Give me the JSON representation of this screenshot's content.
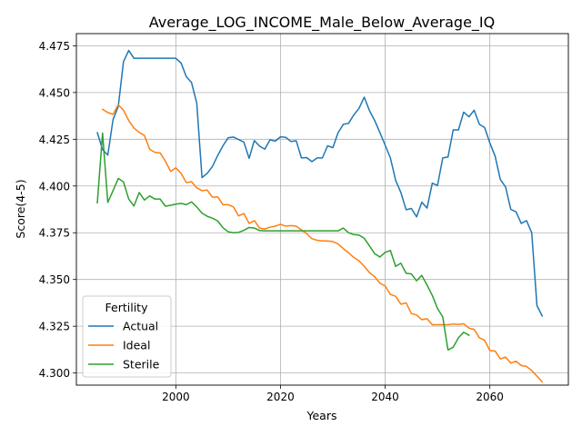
{
  "chart_data": {
    "type": "line",
    "title": "Average_LOG_INCOME_Male_Below_Average_IQ",
    "xlabel": "Years",
    "ylabel": "Score(4-5)",
    "xlim": [
      1981,
      2075
    ],
    "ylim": [
      4.2935,
      4.4815
    ],
    "xticks": [
      2000,
      2020,
      2040,
      2060
    ],
    "xtick_labels": [
      "2000",
      "2020",
      "2040",
      "2060"
    ],
    "yticks": [
      4.3,
      4.325,
      4.35,
      4.375,
      4.4,
      4.425,
      4.45,
      4.475
    ],
    "ytick_labels": [
      "4.300",
      "4.325",
      "4.350",
      "4.375",
      "4.400",
      "4.425",
      "4.450",
      "4.475"
    ],
    "grid": true,
    "legend": {
      "title": "Fertility",
      "position": "lower-left"
    },
    "series": [
      {
        "name": "Actual",
        "color": "#1f77b4",
        "points": [
          [
            1985,
            4.4285
          ],
          [
            1986,
            4.4195
          ],
          [
            1987,
            4.4165
          ],
          [
            1988,
            4.4355
          ],
          [
            1989,
            4.4425
          ],
          [
            1990,
            4.4665
          ],
          [
            1991,
            4.4725
          ],
          [
            1992,
            4.4683
          ],
          [
            1993,
            4.4683
          ],
          [
            1994,
            4.4683
          ],
          [
            1995,
            4.4683
          ],
          [
            1996,
            4.4683
          ],
          [
            1997,
            4.4683
          ],
          [
            1998,
            4.4683
          ],
          [
            1999,
            4.4683
          ],
          [
            2000,
            4.4683
          ],
          [
            2001,
            4.4658
          ],
          [
            2002,
            4.4585
          ],
          [
            2003,
            4.4553
          ],
          [
            2004,
            4.4443
          ],
          [
            2005,
            4.4045
          ],
          [
            2006,
            4.4068
          ],
          [
            2007,
            4.4105
          ],
          [
            2008,
            4.4163
          ],
          [
            2009,
            4.4215
          ],
          [
            2010,
            4.4258
          ],
          [
            2011,
            4.4262
          ],
          [
            2012,
            4.4248
          ],
          [
            2013,
            4.4235
          ],
          [
            2014,
            4.4148
          ],
          [
            2015,
            4.4243
          ],
          [
            2016,
            4.4213
          ],
          [
            2017,
            4.4197
          ],
          [
            2018,
            4.4247
          ],
          [
            2019,
            4.424
          ],
          [
            2020,
            4.4263
          ],
          [
            2021,
            4.426
          ],
          [
            2022,
            4.4238
          ],
          [
            2023,
            4.4242
          ],
          [
            2024,
            4.415
          ],
          [
            2025,
            4.4152
          ],
          [
            2026,
            4.413
          ],
          [
            2027,
            4.415
          ],
          [
            2028,
            4.415
          ],
          [
            2029,
            4.4215
          ],
          [
            2030,
            4.4205
          ],
          [
            2031,
            4.4285
          ],
          [
            2032,
            4.433
          ],
          [
            2033,
            4.4335
          ],
          [
            2034,
            4.438
          ],
          [
            2035,
            4.4415
          ],
          [
            2036,
            4.4475
          ],
          [
            2037,
            4.4403
          ],
          [
            2038,
            4.435
          ],
          [
            2039,
            4.4285
          ],
          [
            2040,
            4.4218
          ],
          [
            2041,
            4.415
          ],
          [
            2042,
            4.403
          ],
          [
            2043,
            4.3965
          ],
          [
            2044,
            4.3873
          ],
          [
            2045,
            4.388
          ],
          [
            2046,
            4.3835
          ],
          [
            2047,
            4.3913
          ],
          [
            2048,
            4.3882
          ],
          [
            2049,
            4.4015
          ],
          [
            2050,
            4.4003
          ],
          [
            2051,
            4.415
          ],
          [
            2052,
            4.4155
          ],
          [
            2053,
            4.43
          ],
          [
            2054,
            4.43
          ],
          [
            2055,
            4.4395
          ],
          [
            2056,
            4.437
          ],
          [
            2057,
            4.4405
          ],
          [
            2058,
            4.433
          ],
          [
            2059,
            4.4313
          ],
          [
            2060,
            4.423
          ],
          [
            2061,
            4.416
          ],
          [
            2062,
            4.4035
          ],
          [
            2063,
            4.3995
          ],
          [
            2064,
            4.3875
          ],
          [
            2065,
            4.3862
          ],
          [
            2066,
            4.38
          ],
          [
            2067,
            4.3815
          ],
          [
            2068,
            4.375
          ],
          [
            2069,
            4.336
          ],
          [
            2070,
            4.3305
          ]
        ]
      },
      {
        "name": "Ideal",
        "color": "#ff7f0e",
        "points": [
          [
            1986,
            4.441
          ],
          [
            1987,
            4.4393
          ],
          [
            1988,
            4.4383
          ],
          [
            1989,
            4.4435
          ],
          [
            1990,
            4.4405
          ],
          [
            1991,
            4.435
          ],
          [
            1992,
            4.431
          ],
          [
            1993,
            4.4287
          ],
          [
            1994,
            4.427
          ],
          [
            1995,
            4.4197
          ],
          [
            1996,
            4.418
          ],
          [
            1997,
            4.4177
          ],
          [
            1998,
            4.4133
          ],
          [
            1999,
            4.4078
          ],
          [
            2000,
            4.4097
          ],
          [
            2001,
            4.4068
          ],
          [
            2002,
            4.4018
          ],
          [
            2003,
            4.4023
          ],
          [
            2004,
            4.399
          ],
          [
            2005,
            4.3975
          ],
          [
            2006,
            4.3978
          ],
          [
            2007,
            4.394
          ],
          [
            2008,
            4.3942
          ],
          [
            2009,
            4.39
          ],
          [
            2010,
            4.39
          ],
          [
            2011,
            4.3888
          ],
          [
            2012,
            4.384
          ],
          [
            2013,
            4.3853
          ],
          [
            2014,
            4.38
          ],
          [
            2015,
            4.3815
          ],
          [
            2016,
            4.3775
          ],
          [
            2017,
            4.377
          ],
          [
            2018,
            4.378
          ],
          [
            2019,
            4.3785
          ],
          [
            2020,
            4.3795
          ],
          [
            2021,
            4.3785
          ],
          [
            2022,
            4.3788
          ],
          [
            2023,
            4.3785
          ],
          [
            2024,
            4.3765
          ],
          [
            2025,
            4.3745
          ],
          [
            2026,
            4.3718
          ],
          [
            2027,
            4.371
          ],
          [
            2028,
            4.3706
          ],
          [
            2029,
            4.3706
          ],
          [
            2030,
            4.3703
          ],
          [
            2031,
            4.369
          ],
          [
            2032,
            4.3665
          ],
          [
            2033,
            4.3643
          ],
          [
            2034,
            4.3618
          ],
          [
            2035,
            4.36
          ],
          [
            2036,
            4.357
          ],
          [
            2037,
            4.3537
          ],
          [
            2038,
            4.3515
          ],
          [
            2039,
            4.348
          ],
          [
            2040,
            4.3465
          ],
          [
            2041,
            4.342
          ],
          [
            2042,
            4.341
          ],
          [
            2043,
            4.3368
          ],
          [
            2044,
            4.3375
          ],
          [
            2045,
            4.3318
          ],
          [
            2046,
            4.331
          ],
          [
            2047,
            4.3285
          ],
          [
            2048,
            4.329
          ],
          [
            2049,
            4.3258
          ],
          [
            2050,
            4.3258
          ],
          [
            2051,
            4.3258
          ],
          [
            2052,
            4.3258
          ],
          [
            2053,
            4.3262
          ],
          [
            2054,
            4.326
          ],
          [
            2055,
            4.3263
          ],
          [
            2056,
            4.324
          ],
          [
            2057,
            4.3233
          ],
          [
            2058,
            4.3188
          ],
          [
            2059,
            4.3175
          ],
          [
            2060,
            4.312
          ],
          [
            2061,
            4.3118
          ],
          [
            2062,
            4.3075
          ],
          [
            2063,
            4.3085
          ],
          [
            2064,
            4.3053
          ],
          [
            2065,
            4.3063
          ],
          [
            2066,
            4.304
          ],
          [
            2067,
            4.3035
          ],
          [
            2068,
            4.3013
          ],
          [
            2069,
            4.2983
          ],
          [
            2070,
            4.2952
          ]
        ]
      },
      {
        "name": "Sterile",
        "color": "#2ca02c",
        "points": [
          [
            1985,
            4.391
          ],
          [
            1986,
            4.4283
          ],
          [
            1987,
            4.3912
          ],
          [
            1988,
            4.3975
          ],
          [
            1989,
            4.404
          ],
          [
            1990,
            4.4022
          ],
          [
            1991,
            4.393
          ],
          [
            1992,
            4.3893
          ],
          [
            1993,
            4.3965
          ],
          [
            1994,
            4.3925
          ],
          [
            1995,
            4.3947
          ],
          [
            1996,
            4.393
          ],
          [
            1997,
            4.393
          ],
          [
            1998,
            4.3892
          ],
          [
            1999,
            4.3897
          ],
          [
            2000,
            4.3903
          ],
          [
            2001,
            4.3907
          ],
          [
            2002,
            4.39
          ],
          [
            2003,
            4.3915
          ],
          [
            2004,
            4.3888
          ],
          [
            2005,
            4.3855
          ],
          [
            2006,
            4.3838
          ],
          [
            2007,
            4.3828
          ],
          [
            2008,
            4.3813
          ],
          [
            2009,
            4.3777
          ],
          [
            2010,
            4.3755
          ],
          [
            2011,
            4.375
          ],
          [
            2012,
            4.3752
          ],
          [
            2013,
            4.3763
          ],
          [
            2014,
            4.3778
          ],
          [
            2015,
            4.3775
          ],
          [
            2016,
            4.3762
          ],
          [
            2017,
            4.376
          ],
          [
            2018,
            4.376
          ],
          [
            2019,
            4.376
          ],
          [
            2020,
            4.376
          ],
          [
            2021,
            4.376
          ],
          [
            2022,
            4.376
          ],
          [
            2023,
            4.376
          ],
          [
            2024,
            4.376
          ],
          [
            2025,
            4.376
          ],
          [
            2026,
            4.376
          ],
          [
            2027,
            4.376
          ],
          [
            2028,
            4.376
          ],
          [
            2029,
            4.376
          ],
          [
            2030,
            4.376
          ],
          [
            2031,
            4.376
          ],
          [
            2032,
            4.3775
          ],
          [
            2033,
            4.375
          ],
          [
            2034,
            4.374
          ],
          [
            2035,
            4.3738
          ],
          [
            2036,
            4.372
          ],
          [
            2037,
            4.368
          ],
          [
            2038,
            4.3638
          ],
          [
            2039,
            4.362
          ],
          [
            2040,
            4.3645
          ],
          [
            2041,
            4.3655
          ],
          [
            2042,
            4.357
          ],
          [
            2043,
            4.3587
          ],
          [
            2044,
            4.3533
          ],
          [
            2045,
            4.353
          ],
          [
            2046,
            4.3493
          ],
          [
            2047,
            4.3522
          ],
          [
            2048,
            4.347
          ],
          [
            2049,
            4.3415
          ],
          [
            2050,
            4.3345
          ],
          [
            2051,
            4.33
          ],
          [
            2052,
            4.3123
          ],
          [
            2053,
            4.3138
          ],
          [
            2054,
            4.3188
          ],
          [
            2055,
            4.3218
          ],
          [
            2056,
            4.3202
          ]
        ]
      }
    ]
  }
}
